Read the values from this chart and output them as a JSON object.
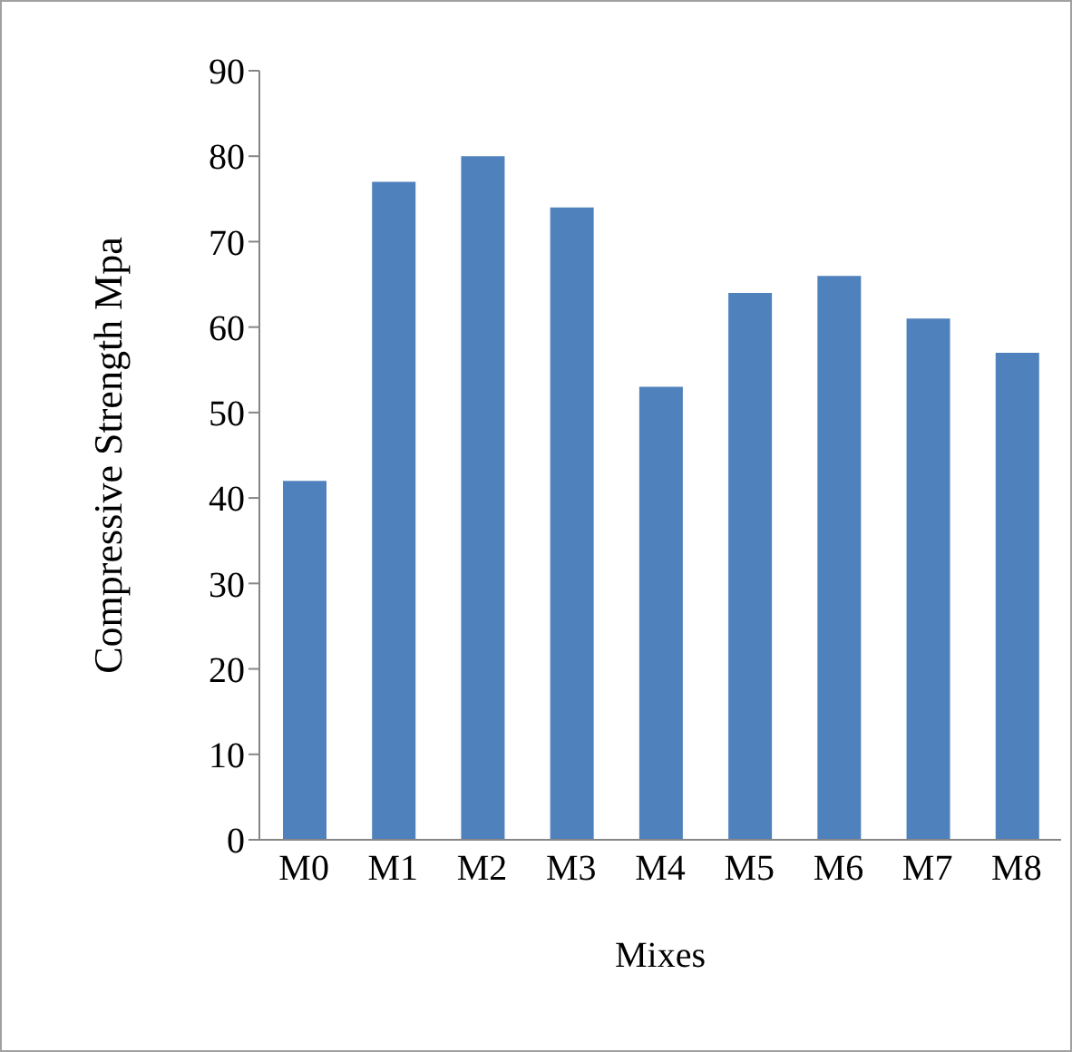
{
  "chart_data": {
    "type": "bar",
    "xlabel": "Mixes",
    "ylabel": "Compressive Strength Mpa",
    "categories": [
      "M0",
      "M1",
      "M2",
      "M3",
      "M4",
      "M5",
      "M6",
      "M7",
      "M8"
    ],
    "values": [
      42,
      77,
      80,
      74,
      53,
      64,
      66,
      61,
      57
    ],
    "color": "#4f81bd",
    "ylim": [
      0,
      90
    ],
    "yticks": [
      0,
      10,
      20,
      30,
      40,
      50,
      60,
      70,
      80,
      90
    ],
    "grid": false,
    "legend": false
  }
}
